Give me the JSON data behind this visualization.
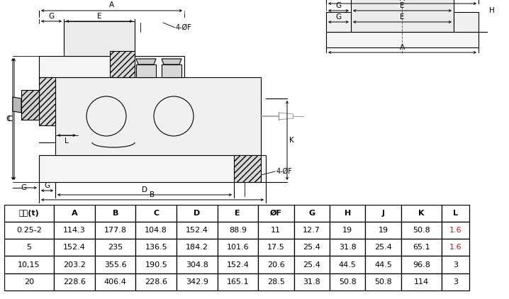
{
  "table_headers": [
    "容量(t)",
    "A",
    "B",
    "C",
    "D",
    "E",
    "ØF",
    "G",
    "H",
    "J",
    "K",
    "L"
  ],
  "table_rows": [
    [
      "0.25-2",
      "114.3",
      "177.8",
      "104.8",
      "152.4",
      "88.9",
      "11",
      "12.7",
      "19",
      "19",
      "50.8",
      "1.6"
    ],
    [
      "5",
      "152.4",
      "235",
      "136.5",
      "184.2",
      "101.6",
      "17.5",
      "25.4",
      "31.8",
      "25.4",
      "65.1",
      "1.6"
    ],
    [
      "10,15",
      "203.2",
      "355.6",
      "190.5",
      "304.8",
      "152.4",
      "20.6",
      "25.4",
      "44.5",
      "44.5",
      "96.8",
      "3"
    ],
    [
      "20",
      "228.6",
      "406.4",
      "228.6",
      "342.9",
      "165.1",
      "28.5",
      "31.8",
      "50.8",
      "50.8",
      "114",
      "3"
    ]
  ],
  "bg_color": "#ffffff",
  "line_color": "#000000",
  "gray_color": "#999999"
}
